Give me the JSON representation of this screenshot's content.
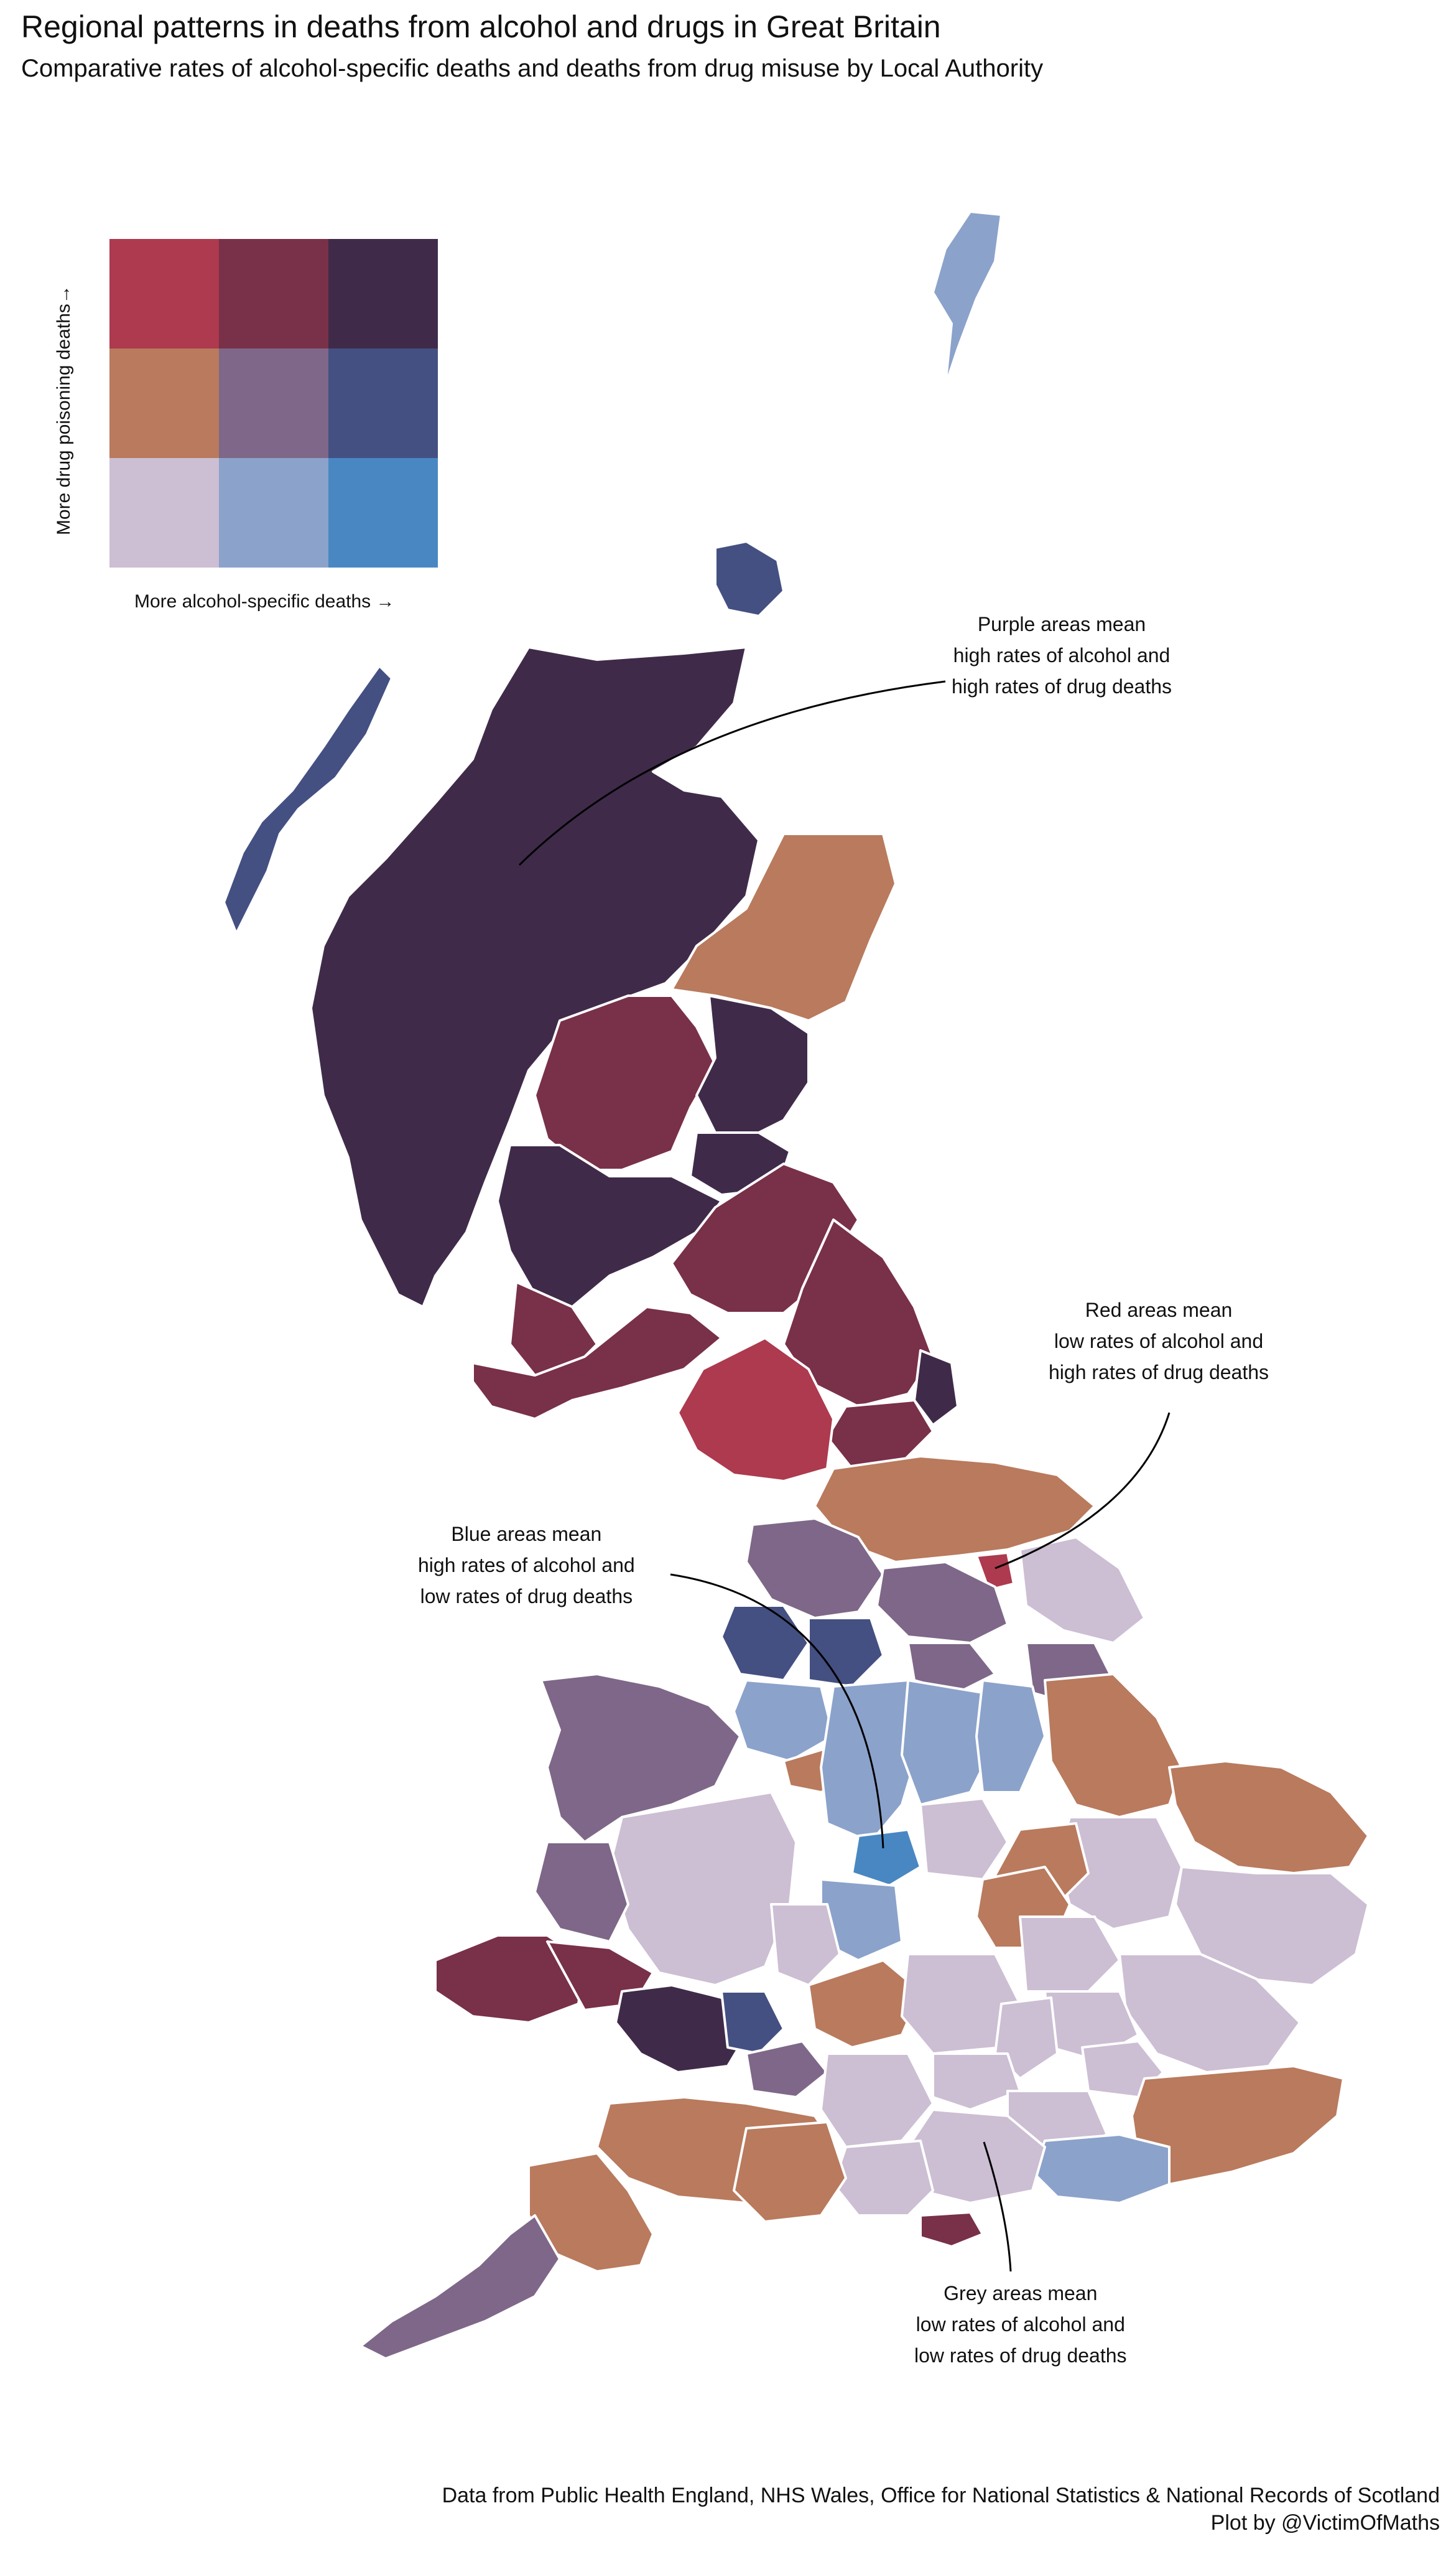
{
  "title": "Regional patterns in deaths from alcohol and drugs in Great Britain",
  "subtitle": "Comparative rates of alcohol-specific deaths and deaths from drug misuse by Local Authority",
  "legend": {
    "x_label": "More alcohol-specific deaths →",
    "y_label": "More drug poisoning deaths→",
    "palette": [
      [
        "#ad3a4e",
        "#793049",
        "#3f2b49"
      ],
      [
        "#b97a5d",
        "#7e6788",
        "#445082"
      ],
      [
        "#ccbed3",
        "#8ba2cb",
        "#4987c3"
      ]
    ]
  },
  "annotations": {
    "purple": [
      "Purple areas mean",
      "high rates of alcohol and",
      "high rates of drug deaths"
    ],
    "red": [
      "Red areas mean",
      "low rates of alcohol and",
      "high rates of drug deaths"
    ],
    "blue": [
      "Blue areas mean",
      "high rates of alcohol and",
      "low rates of drug deaths"
    ],
    "grey": [
      "Grey areas mean",
      "low rates of alcohol and",
      "low rates of drug deaths"
    ]
  },
  "caption": {
    "line1": "Data from Public Health England, NHS Wales, Office for National Statistics & National Records of Scotland",
    "line2": "Plot by @VictimOfMaths"
  }
}
